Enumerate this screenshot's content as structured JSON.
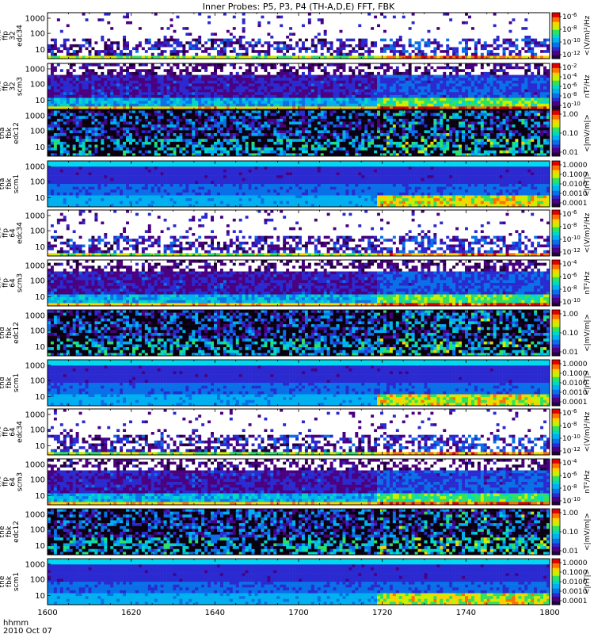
{
  "chart_data": {
    "type": "heatmap",
    "title": "Inner Probes: P5, P3, P4 (TH-A,D,E) FFT, FBK",
    "x_ticks": [
      "1600",
      "1620",
      "1640",
      "1700",
      "1720",
      "1740",
      "1800"
    ],
    "x_range": [
      "1600",
      "1800"
    ],
    "x_label_lines": [
      "hhmm",
      "2010 Oct 07"
    ],
    "event_time": "1718",
    "panels": [
      {
        "probe": "tha",
        "label": [
          "tha",
          "ffp",
          "32",
          "edc34"
        ],
        "y_ticks": [
          "10",
          "100",
          "1000"
        ],
        "cbar_ticks": [
          "10^-6",
          "10^-8",
          "10^-10",
          "10^-12"
        ],
        "cbar_unit": "<(V/m)²/Hz",
        "style": "dots"
      },
      {
        "probe": "tha",
        "label": [
          "tha",
          "ffp",
          "32",
          "scm3"
        ],
        "y_ticks": [
          "10",
          "100",
          "1000"
        ],
        "cbar_ticks": [
          "10^-2",
          "10^-4",
          "10^-6",
          "10^-8",
          "10^-10"
        ],
        "cbar_unit": "nT²/Hz",
        "style": "scm3"
      },
      {
        "probe": "tha",
        "label": [
          "tha",
          "fbk",
          "edc12"
        ],
        "y_ticks": [
          "10",
          "100",
          "1000"
        ],
        "cbar_ticks": [
          "1.00",
          "0.10",
          "0.01"
        ],
        "cbar_unit": "<|mV/m|>",
        "style": "edc12"
      },
      {
        "probe": "tha",
        "label": [
          "tha",
          "fbk",
          "scm1"
        ],
        "y_ticks": [
          "10",
          "100",
          "1000"
        ],
        "cbar_ticks": [
          "1.0000",
          "0.1000",
          "0.0100",
          "0.0010",
          "0.0001"
        ],
        "cbar_unit": "<|nT|>",
        "style": "scm1"
      },
      {
        "probe": "thd",
        "label": [
          "thd",
          "ffp",
          "64",
          "edc34"
        ],
        "y_ticks": [
          "10",
          "100",
          "1000"
        ],
        "cbar_ticks": [
          "10^-6",
          "10^-8",
          "10^-10",
          "10^-12"
        ],
        "cbar_unit": "<(V/m)²/Hz",
        "style": "dots"
      },
      {
        "probe": "thd",
        "label": [
          "thd",
          "ffp",
          "64",
          "scm3"
        ],
        "y_ticks": [
          "10",
          "100",
          "1000"
        ],
        "cbar_ticks": [
          "10^-4",
          "10^-6",
          "10^-8",
          "10^-10"
        ],
        "cbar_unit": "nT²/Hz",
        "style": "scm3"
      },
      {
        "probe": "thd",
        "label": [
          "thd",
          "fbk",
          "edc12"
        ],
        "y_ticks": [
          "10",
          "100",
          "1000"
        ],
        "cbar_ticks": [
          "1.00",
          "0.10",
          "0.01"
        ],
        "cbar_unit": "<|mV/m|>",
        "style": "edc12"
      },
      {
        "probe": "thd",
        "label": [
          "thd",
          "fbk",
          "scm1"
        ],
        "y_ticks": [
          "10",
          "100",
          "1000"
        ],
        "cbar_ticks": [
          "1.0000",
          "0.1000",
          "0.0100",
          "0.0010",
          "0.0001"
        ],
        "cbar_unit": "<|nT|>",
        "style": "scm1"
      },
      {
        "probe": "the",
        "label": [
          "the",
          "ffp",
          "64",
          "edc34"
        ],
        "y_ticks": [
          "10",
          "100",
          "1000"
        ],
        "cbar_ticks": [
          "10^-6",
          "10^-8",
          "10^-10",
          "10^-12"
        ],
        "cbar_unit": "<(V/m)²/Hz",
        "style": "dots"
      },
      {
        "probe": "the",
        "label": [
          "the",
          "ffp",
          "64",
          "scm3"
        ],
        "y_ticks": [
          "10",
          "100",
          "1000"
        ],
        "cbar_ticks": [
          "10^-4",
          "10^-6",
          "10^-8",
          "10^-10"
        ],
        "cbar_unit": "nT²/Hz",
        "style": "scm3"
      },
      {
        "probe": "the",
        "label": [
          "the",
          "fbk",
          "edc12"
        ],
        "y_ticks": [
          "10",
          "100",
          "1000"
        ],
        "cbar_ticks": [
          "1.00",
          "0.10",
          "0.01"
        ],
        "cbar_unit": "<|mV/m|>",
        "style": "edc12"
      },
      {
        "probe": "the",
        "label": [
          "the",
          "fbk",
          "scm1"
        ],
        "y_ticks": [
          "10",
          "100",
          "1000"
        ],
        "cbar_ticks": [
          "1.0000",
          "0.1000",
          "0.0100",
          "0.0010",
          "0.0001"
        ],
        "cbar_unit": "<|nT|>",
        "style": "scm1"
      }
    ],
    "colorscale": [
      "#22003a",
      "#4a0080",
      "#2a2ad0",
      "#0a70e8",
      "#00b0f0",
      "#00d8c8",
      "#30e060",
      "#c8f000",
      "#ffd000",
      "#ff7000",
      "#e00000"
    ]
  }
}
